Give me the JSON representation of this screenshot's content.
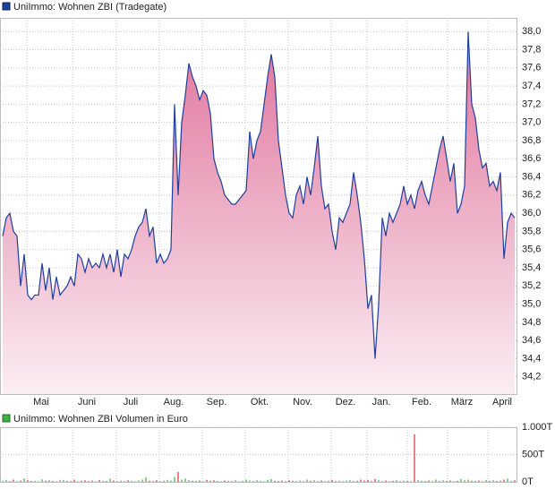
{
  "chart_data": [
    {
      "type": "area",
      "series": [
        {
          "name": "UniImmo: Wohnen ZBI (Tradegate)",
          "color": "#1f3f9a",
          "fill_top": "#e0739c",
          "fill_bottom": "#fbeef3",
          "values": [
            35.75,
            35.95,
            36.0,
            35.8,
            35.75,
            35.2,
            35.55,
            35.1,
            35.05,
            35.1,
            35.1,
            35.45,
            35.15,
            35.4,
            35.05,
            35.3,
            35.1,
            35.15,
            35.2,
            35.3,
            35.2,
            35.55,
            35.5,
            35.35,
            35.5,
            35.4,
            35.45,
            35.4,
            35.55,
            35.4,
            35.55,
            35.35,
            35.6,
            35.3,
            35.55,
            35.5,
            35.6,
            35.75,
            35.85,
            35.9,
            36.05,
            35.75,
            35.85,
            35.45,
            35.55,
            35.45,
            35.5,
            35.6,
            37.2,
            36.2,
            37.0,
            37.3,
            37.65,
            37.5,
            37.4,
            37.25,
            37.35,
            37.3,
            37.1,
            36.6,
            36.45,
            36.35,
            36.2,
            36.15,
            36.1,
            36.1,
            36.15,
            36.2,
            36.25,
            36.9,
            36.6,
            36.8,
            36.9,
            37.2,
            37.5,
            37.75,
            37.5,
            36.8,
            36.5,
            36.2,
            36.0,
            35.95,
            36.2,
            36.3,
            36.1,
            36.4,
            36.2,
            36.5,
            36.85,
            36.3,
            36.05,
            36.1,
            35.8,
            35.6,
            35.95,
            35.9,
            36.0,
            36.1,
            36.45,
            36.2,
            35.9,
            35.5,
            34.95,
            35.1,
            34.4,
            35.0,
            35.95,
            35.75,
            36.0,
            35.9,
            36.0,
            36.1,
            36.3,
            36.1,
            36.2,
            36.05,
            36.25,
            36.35,
            36.2,
            36.1,
            36.3,
            36.5,
            36.7,
            36.85,
            36.6,
            36.35,
            36.55,
            36.0,
            36.1,
            36.3,
            38.0,
            37.2,
            37.05,
            36.7,
            36.5,
            36.55,
            36.3,
            36.35,
            36.25,
            36.45,
            35.5,
            35.9,
            36.0,
            35.95
          ]
        }
      ],
      "xlim": [
        -0.75,
        143.75
      ],
      "xticks": [
        {
          "value": 6.75,
          "label": "Mai"
        },
        {
          "value": 19.5,
          "label": "Juni"
        },
        {
          "value": 31.75,
          "label": "Juli"
        },
        {
          "value": 43.75,
          "label": "Aug."
        },
        {
          "value": 55.75,
          "label": "Sep."
        },
        {
          "value": 67.75,
          "label": "Okt."
        },
        {
          "value": 79.75,
          "label": "Nov."
        },
        {
          "value": 91.75,
          "label": "Dez."
        },
        {
          "value": 101.75,
          "label": "Jan."
        },
        {
          "value": 113,
          "label": "Feb."
        },
        {
          "value": 124.25,
          "label": "März"
        },
        {
          "value": 135.5,
          "label": "April"
        }
      ],
      "ylim": [
        34.01,
        38.15
      ],
      "yticks": [
        {
          "value": 34.2,
          "label": "34,2"
        },
        {
          "value": 34.4,
          "label": "34,4"
        },
        {
          "value": 34.6,
          "label": "34,6"
        },
        {
          "value": 34.8,
          "label": "34,8"
        },
        {
          "value": 35.0,
          "label": "35,0"
        },
        {
          "value": 35.2,
          "label": "35,2"
        },
        {
          "value": 35.4,
          "label": "35,4"
        },
        {
          "value": 35.6,
          "label": "35,6"
        },
        {
          "value": 35.8,
          "label": "35,8"
        },
        {
          "value": 36.0,
          "label": "36,0"
        },
        {
          "value": 36.2,
          "label": "36,2"
        },
        {
          "value": 36.4,
          "label": "36,4"
        },
        {
          "value": 36.6,
          "label": "36,6"
        },
        {
          "value": 36.8,
          "label": "36,8"
        },
        {
          "value": 37.0,
          "label": "37,0"
        },
        {
          "value": 37.2,
          "label": "37,2"
        },
        {
          "value": 37.4,
          "label": "37,4"
        },
        {
          "value": 37.6,
          "label": "37,6"
        },
        {
          "value": 37.8,
          "label": "37,8"
        },
        {
          "value": 38.0,
          "label": "38,0"
        }
      ],
      "grid": true
    },
    {
      "type": "bar",
      "series": [
        {
          "name": "UniImmo: Wohnen ZBI Volumen in Euro",
          "color": "#3cb043",
          "up_color": "#3cb043",
          "down_color": "#e03030",
          "values": [
            20,
            35,
            15,
            40,
            10,
            25,
            60,
            30,
            15,
            20,
            10,
            45,
            20,
            30,
            15,
            10,
            25,
            35,
            20,
            15,
            40,
            10,
            20,
            30,
            15,
            25,
            10,
            35,
            20,
            15,
            60,
            25,
            10,
            20,
            15,
            30,
            20,
            10,
            25,
            40,
            80,
            20,
            15,
            30,
            10,
            20,
            35,
            25,
            90,
            180,
            40,
            60,
            30,
            20,
            15,
            25,
            10,
            35,
            20,
            30,
            15,
            10,
            25,
            20,
            15,
            30,
            10,
            20,
            40,
            25,
            15,
            30,
            20,
            10,
            35,
            50,
            20,
            15,
            25,
            10,
            30,
            20,
            15,
            25,
            10,
            40,
            20,
            30,
            15,
            25,
            10,
            20,
            35,
            15,
            20,
            10,
            25,
            30,
            15,
            20,
            40,
            25,
            35,
            20,
            50,
            30,
            15,
            25,
            10,
            20,
            30,
            15,
            25,
            20,
            10,
            870,
            30,
            20,
            15,
            25,
            10,
            40,
            20,
            30,
            15,
            25,
            10,
            20,
            50,
            30,
            40,
            20,
            15,
            25,
            10,
            35,
            20,
            30,
            15,
            25,
            40,
            60,
            20,
            30
          ]
        }
      ],
      "ylim": [
        0,
        1000
      ],
      "yticks": [
        {
          "value": 0,
          "label": "0T"
        },
        {
          "value": 500,
          "label": "500T"
        },
        {
          "value": 1000,
          "label": "1.000T"
        }
      ],
      "grid": true
    }
  ]
}
